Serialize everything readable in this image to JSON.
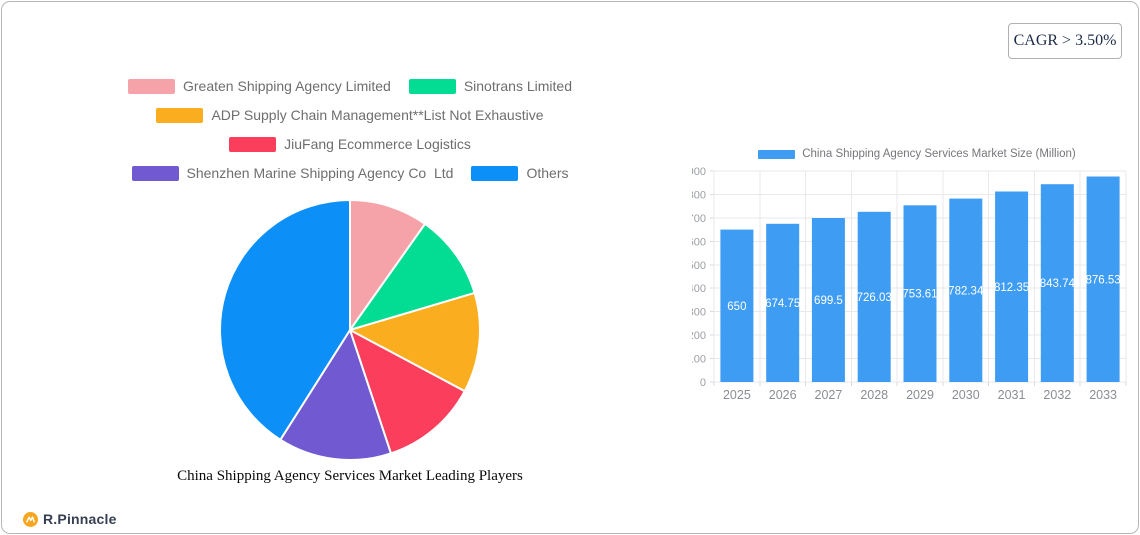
{
  "badge": {
    "cagr": "CAGR > 3.50%"
  },
  "logo": {
    "text": "R.Pinnacle",
    "icon": "pinnacle-circle-icon",
    "icon_color": "#F6A71F",
    "glyph_color": "#ffffff"
  },
  "colors": {
    "bar_blue": "#3E9CF3",
    "grid": "#E9E9EC",
    "tick": "#D9D9DC",
    "y_label": "#9A9EA4",
    "x_label": "#8A8E94",
    "value_label": "#FFFFFF",
    "legend_text": "#6E6E6E",
    "card_border": "#B6B6B6"
  },
  "chart_data": [
    {
      "type": "pie",
      "title": "China Shipping Agency Services Market Leading Players",
      "labels": [
        "Greaten Shipping Agency Limited",
        "Sinotrans Limited",
        "ADP Supply Chain Management**List Not Exhaustive",
        "JiuFang Ecommerce Logistics",
        "Shenzhen Marine Shipping Agency Co  Ltd",
        "Others"
      ],
      "values_pct": [
        9.8,
        10.6,
        12.4,
        12.1,
        14.1,
        41.0
      ],
      "colors": [
        "#F5A2A8",
        "#02DD93",
        "#FAAD1E",
        "#FA3E5B",
        "#7159D1",
        "#0C90F8"
      ],
      "start_angle_deg": 0,
      "direction": "clockwise",
      "legend_position": "top"
    },
    {
      "type": "bar",
      "legend_label": "China Shipping Agency Services Market Size (Million)",
      "categories": [
        "2025",
        "2026",
        "2027",
        "2028",
        "2029",
        "2030",
        "2031",
        "2032",
        "2033"
      ],
      "values": [
        650,
        674.75,
        699.5,
        726.03,
        753.61,
        782.34,
        812.35,
        843.74,
        876.53
      ],
      "value_labels": [
        "650",
        "674.75",
        "699.5",
        "726.03",
        "753.61",
        "782.34",
        "812.35",
        "843.74",
        "876.53"
      ],
      "ylim": [
        0,
        900
      ],
      "yticks": [
        0,
        100,
        200,
        300,
        400,
        500,
        600,
        700,
        800,
        900
      ],
      "bar_color": "#3E9CF3",
      "grid": true,
      "legend_position": "top"
    }
  ]
}
